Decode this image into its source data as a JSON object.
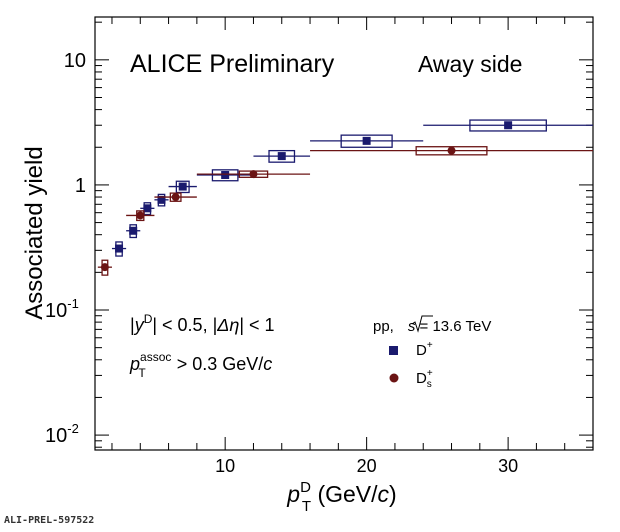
{
  "chart_data": {
    "type": "scatter",
    "title": "ALICE Preliminary",
    "region_label": "Away side",
    "xlabel": {
      "var": "p",
      "sub": "T",
      "sup": "D",
      "unit_open": " (GeV/",
      "unit_var": "c",
      "unit_close": ")"
    },
    "ylabel": "Associated yield",
    "xlim": [
      0.8,
      36
    ],
    "ylim": [
      0.0076,
      22
    ],
    "yscale": "log",
    "x_ticks": [
      "10",
      "20",
      "30"
    ],
    "y_ticks": [
      {
        "base": "10",
        "exp": "-2"
      },
      {
        "base": "10",
        "exp": "-1"
      },
      {
        "base": "1",
        "exp": ""
      },
      {
        "base": "10",
        "exp": ""
      }
    ],
    "cuts": {
      "rapidity": {
        "pre": "|",
        "var": "y",
        "sup": "D",
        "mid": "| < 0.5, |",
        "var2": "Δη",
        "post": "| < 1"
      },
      "pt_assoc": {
        "var": "p",
        "sub": "T",
        "sup": "assoc",
        "post": " > 0.3 GeV/",
        "unit_var": "c"
      }
    },
    "energy": {
      "system": "pp,",
      "var": "s",
      "post": " = 13.6 TeV"
    },
    "series": [
      {
        "name": "D",
        "name_sup": "+",
        "name_sub": "",
        "marker": "square",
        "color": "#1a1a6e",
        "points": [
          {
            "x": 2.5,
            "y": 0.31,
            "x_lo": 2.0,
            "x_hi": 3.0,
            "sys": 0.04
          },
          {
            "x": 3.5,
            "y": 0.43,
            "x_lo": 3.0,
            "x_hi": 4.0,
            "sys": 0.05
          },
          {
            "x": 4.5,
            "y": 0.65,
            "x_lo": 4.0,
            "x_hi": 5.0,
            "sys": 0.07
          },
          {
            "x": 5.5,
            "y": 0.76,
            "x_lo": 5.0,
            "x_hi": 6.0,
            "sys": 0.08
          },
          {
            "x": 7.0,
            "y": 0.97,
            "x_lo": 6.0,
            "x_hi": 8.0,
            "sys": 0.1
          },
          {
            "x": 10.0,
            "y": 1.2,
            "x_lo": 8.0,
            "x_hi": 12.0,
            "sys": 0.12
          },
          {
            "x": 14.0,
            "y": 1.7,
            "x_lo": 12.0,
            "x_hi": 16.0,
            "sys": 0.18
          },
          {
            "x": 20.0,
            "y": 2.25,
            "x_lo": 16.0,
            "x_hi": 24.0,
            "sys": 0.25
          },
          {
            "x": 30.0,
            "y": 3.0,
            "x_lo": 24.0,
            "x_hi": 36.0,
            "sys": 0.3
          }
        ]
      },
      {
        "name": "D",
        "name_sup": "+",
        "name_sub": "s",
        "marker": "circle",
        "color": "#6b1414",
        "points": [
          {
            "x": 1.5,
            "y": 0.22,
            "x_lo": 1.0,
            "x_hi": 2.0,
            "sys": 0.03
          },
          {
            "x": 4.0,
            "y": 0.57,
            "x_lo": 3.0,
            "x_hi": 5.0,
            "sys": 0.05
          },
          {
            "x": 6.5,
            "y": 0.8,
            "x_lo": 5.0,
            "x_hi": 8.0,
            "sys": 0.06
          },
          {
            "x": 12.0,
            "y": 1.22,
            "x_lo": 8.0,
            "x_hi": 16.0,
            "sys": 0.07
          },
          {
            "x": 26.0,
            "y": 1.88,
            "x_lo": 16.0,
            "x_hi": 36.0,
            "sys": 0.14
          }
        ]
      }
    ],
    "legend_position": "right-middle",
    "grid": false
  },
  "footer_id": "ALI-PREL-597522"
}
